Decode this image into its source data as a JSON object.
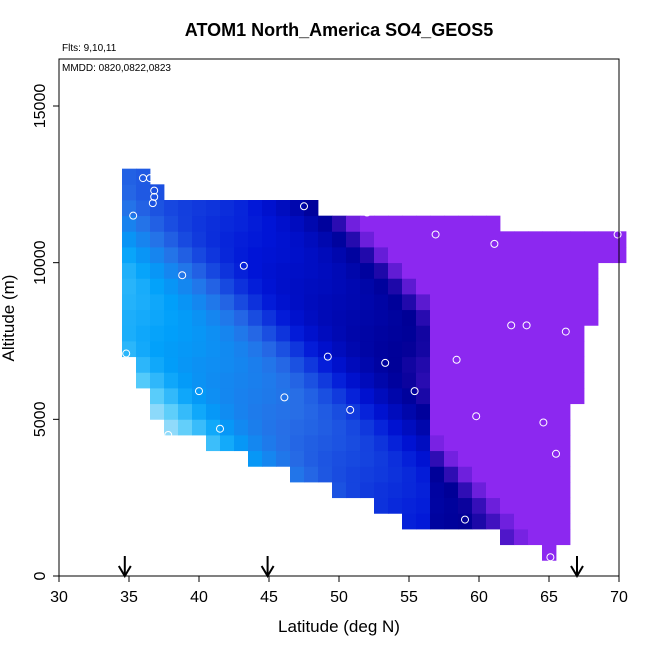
{
  "chart_data": {
    "type": "heatmap",
    "title": "ATOM1 North_America SO4_GEOS5",
    "flights_note": "Flts: 9,10,11",
    "dates_note": "MMDD: 0820,0822,0823",
    "xlabel": "Latitude (deg N)",
    "ylabel": "Altitude (m)",
    "xlim": [
      30,
      70
    ],
    "ylim": [
      0,
      16500
    ],
    "x_ticks": [
      30,
      35,
      40,
      45,
      50,
      55,
      60,
      65,
      70
    ],
    "x_tick_labels": [
      "30",
      "35",
      "40",
      "45",
      "50",
      "55",
      "60",
      "65",
      "70"
    ],
    "y_ticks": [
      0,
      5000,
      10000,
      15000
    ],
    "y_tick_labels": [
      "0",
      "5000",
      "10000",
      "15000"
    ],
    "grid": false,
    "cell_size": {
      "lat": 1,
      "alt": 500
    },
    "column_altitude_range": [
      {
        "lat": 35,
        "range": [
          7000,
          13000
        ]
      },
      {
        "lat": 36,
        "range": [
          6000,
          13000
        ]
      },
      {
        "lat": 37,
        "range": [
          5000,
          12500
        ]
      },
      {
        "lat": 38,
        "range": [
          4500,
          12000
        ]
      },
      {
        "lat": 39,
        "range": [
          4500,
          12000
        ]
      },
      {
        "lat": 40,
        "range": [
          4500,
          12000
        ]
      },
      {
        "lat": 41,
        "range": [
          4000,
          12000
        ]
      },
      {
        "lat": 42,
        "range": [
          4000,
          12000
        ]
      },
      {
        "lat": 43,
        "range": [
          4000,
          12000
        ]
      },
      {
        "lat": 44,
        "range": [
          3500,
          12000
        ]
      },
      {
        "lat": 45,
        "range": [
          3500,
          12000
        ]
      },
      {
        "lat": 46,
        "range": [
          3500,
          12000
        ]
      },
      {
        "lat": 47,
        "range": [
          3000,
          12000
        ]
      },
      {
        "lat": 48,
        "range": [
          3000,
          12000
        ]
      },
      {
        "lat": 49,
        "range": [
          3000,
          11500
        ]
      },
      {
        "lat": 50,
        "range": [
          2500,
          11500
        ]
      },
      {
        "lat": 51,
        "range": [
          2500,
          11500
        ]
      },
      {
        "lat": 52,
        "range": [
          2500,
          11500
        ]
      },
      {
        "lat": 53,
        "range": [
          2000,
          11500
        ]
      },
      {
        "lat": 54,
        "range": [
          2000,
          11500
        ]
      },
      {
        "lat": 55,
        "range": [
          1500,
          11500
        ]
      },
      {
        "lat": 56,
        "range": [
          1500,
          11500
        ]
      },
      {
        "lat": 57,
        "range": [
          1500,
          11500
        ]
      },
      {
        "lat": 58,
        "range": [
          1500,
          11500
        ]
      },
      {
        "lat": 59,
        "range": [
          1500,
          11500
        ]
      },
      {
        "lat": 60,
        "range": [
          1500,
          11500
        ]
      },
      {
        "lat": 61,
        "range": [
          1500,
          11500
        ]
      },
      {
        "lat": 62,
        "range": [
          1000,
          11000
        ]
      },
      {
        "lat": 63,
        "range": [
          1000,
          11000
        ]
      },
      {
        "lat": 64,
        "range": [
          1000,
          11000
        ]
      },
      {
        "lat": 65,
        "range": [
          500,
          11000
        ]
      },
      {
        "lat": 66,
        "range": [
          1000,
          11000
        ]
      },
      {
        "lat": 67,
        "range": [
          5500,
          11000
        ]
      },
      {
        "lat": 68,
        "range": [
          8000,
          11000
        ]
      },
      {
        "lat": 69,
        "range": [
          10000,
          11000
        ]
      },
      {
        "lat": 70,
        "range": [
          10000,
          11000
        ]
      }
    ],
    "sample_points": [
      {
        "lat": 36.0,
        "alt": 12700
      },
      {
        "lat": 36.5,
        "alt": 12700
      },
      {
        "lat": 36.8,
        "alt": 12300
      },
      {
        "lat": 36.8,
        "alt": 12100
      },
      {
        "lat": 36.7,
        "alt": 11900
      },
      {
        "lat": 35.3,
        "alt": 11500
      },
      {
        "lat": 47.5,
        "alt": 11800
      },
      {
        "lat": 52.0,
        "alt": 11600
      },
      {
        "lat": 56.9,
        "alt": 10900
      },
      {
        "lat": 61.1,
        "alt": 10600
      },
      {
        "lat": 69.9,
        "alt": 10900
      },
      {
        "lat": 43.2,
        "alt": 9900
      },
      {
        "lat": 38.8,
        "alt": 9600
      },
      {
        "lat": 62.3,
        "alt": 8000
      },
      {
        "lat": 63.4,
        "alt": 8000
      },
      {
        "lat": 66.2,
        "alt": 7800
      },
      {
        "lat": 34.8,
        "alt": 7100
      },
      {
        "lat": 49.2,
        "alt": 7000
      },
      {
        "lat": 53.3,
        "alt": 6800
      },
      {
        "lat": 58.4,
        "alt": 6900
      },
      {
        "lat": 55.4,
        "alt": 5900
      },
      {
        "lat": 40.0,
        "alt": 5900
      },
      {
        "lat": 46.1,
        "alt": 5700
      },
      {
        "lat": 50.8,
        "alt": 5300
      },
      {
        "lat": 59.8,
        "alt": 5100
      },
      {
        "lat": 64.6,
        "alt": 4900
      },
      {
        "lat": 41.5,
        "alt": 4700
      },
      {
        "lat": 37.8,
        "alt": 4500
      },
      {
        "lat": 65.5,
        "alt": 3900
      },
      {
        "lat": 59.0,
        "alt": 1800
      },
      {
        "lat": 65.1,
        "alt": 600
      }
    ],
    "arrow_latitudes": [
      34.7,
      44.9,
      67.0
    ]
  }
}
